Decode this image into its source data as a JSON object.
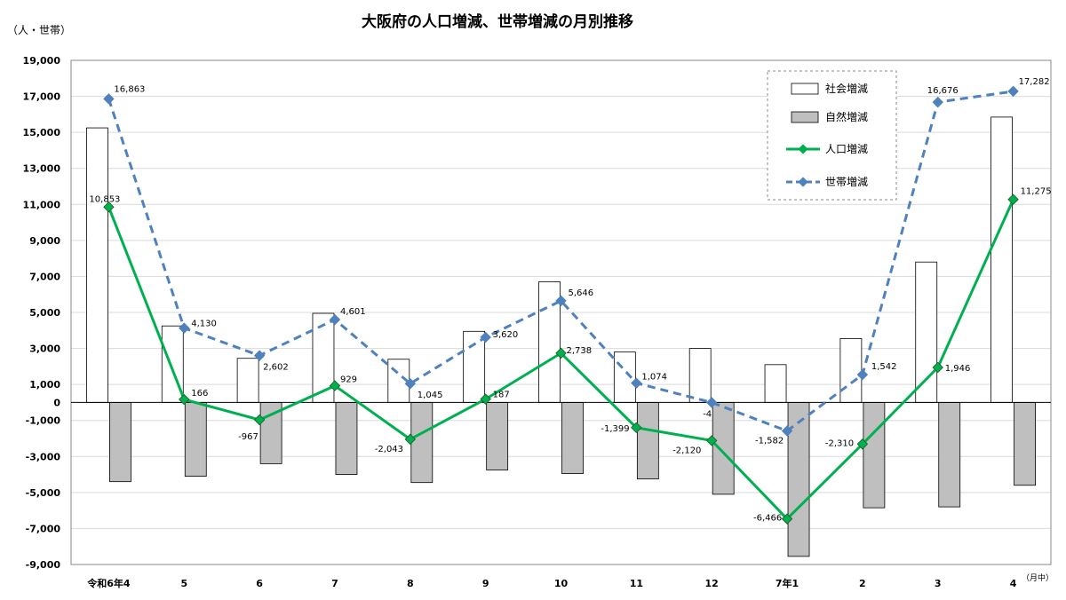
{
  "chart_data": {
    "type": "bar+line",
    "title": "大阪府の人口増減、世帯増減の月別推移",
    "unit_label": "（人・世帯）",
    "x_unit_label": "（月中）",
    "categories": [
      "令和6年4",
      "5",
      "6",
      "7",
      "8",
      "9",
      "10",
      "11",
      "12",
      "7年1",
      "2",
      "3",
      "4"
    ],
    "ylim": [
      -9000,
      19000
    ],
    "yticks": [
      19000,
      17000,
      15000,
      13000,
      11000,
      9000,
      7000,
      5000,
      3000,
      1000,
      0,
      -1000,
      -3000,
      -5000,
      -7000,
      -9000
    ],
    "ytick_labels": [
      "19,000",
      "17,000",
      "15,000",
      "13,000",
      "11,000",
      "9,000",
      "7,000",
      "5,000",
      "3,000",
      "1,000",
      "0",
      "-1,000",
      "-3,000",
      "-5,000",
      "-7,000",
      "-9,000"
    ],
    "grid": true,
    "legend_position": "top-right",
    "series": [
      {
        "name": "社会増減",
        "kind": "bar",
        "color": "#ffffff",
        "border": "#000000",
        "values": [
          15250,
          4250,
          2450,
          4950,
          2400,
          3950,
          6700,
          2800,
          3000,
          2100,
          3550,
          7800,
          15850
        ]
      },
      {
        "name": "自然増減",
        "kind": "bar",
        "color": "#bfbfbf",
        "border": "#000000",
        "values": [
          -4400,
          -4100,
          -3400,
          -4000,
          -4450,
          -3750,
          -3950,
          -4250,
          -5100,
          -8550,
          -5850,
          -5800,
          -4600
        ]
      },
      {
        "name": "人口増減",
        "kind": "line",
        "style": "solid",
        "color": "#00b050",
        "marker_color": "#00b050",
        "values": [
          10853,
          166,
          -967,
          929,
          -2043,
          187,
          2738,
          -1399,
          -2120,
          -6466,
          -2310,
          1946,
          11275
        ],
        "labels": [
          "10,853",
          "166",
          "-967",
          "929",
          "-2,043",
          "187",
          "2,738",
          "-1,399",
          "-2,120",
          "-6,466",
          "-2,310",
          "1,946",
          "11,275"
        ]
      },
      {
        "name": "世帯増減",
        "kind": "line",
        "style": "dashed",
        "color": "#4f81bd",
        "marker_color": "#4f81bd",
        "values": [
          16863,
          4130,
          2602,
          4601,
          1045,
          3620,
          5646,
          1074,
          -4,
          -1582,
          1542,
          16676,
          17282
        ],
        "labels": [
          "16,863",
          "4,130",
          "2,602",
          "4,601",
          "1,045",
          "3,620",
          "5,646",
          "1,074",
          "-4",
          "-1,582",
          "1,542",
          "16,676",
          "17,282"
        ]
      }
    ]
  }
}
